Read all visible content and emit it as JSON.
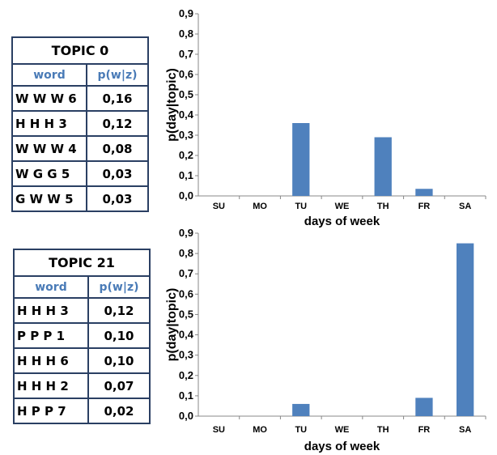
{
  "tables": [
    {
      "title": "TOPIC 0",
      "headers": [
        "word",
        "p(w|z)"
      ],
      "rows": [
        [
          "W W W 6",
          "0,16"
        ],
        [
          "H H H 3",
          "0,12"
        ],
        [
          "W W W 4",
          "0,08"
        ],
        [
          "W G G 5",
          "0,03"
        ],
        [
          "G W W 5",
          "0,03"
        ]
      ]
    },
    {
      "title": "TOPIC 21",
      "headers": [
        "word",
        "p(w|z)"
      ],
      "rows": [
        [
          "H H H 3",
          "0,12"
        ],
        [
          "P P P 1",
          "0,10"
        ],
        [
          "H H H 6",
          "0,10"
        ],
        [
          "H H H 2",
          "0,07"
        ],
        [
          "H P P 7",
          "0,02"
        ]
      ]
    }
  ],
  "chart_data": [
    {
      "type": "bar",
      "categories": [
        "SU",
        "MO",
        "TU",
        "WE",
        "TH",
        "FR",
        "SA"
      ],
      "values": [
        0,
        0,
        0.36,
        0,
        0.29,
        0.035,
        0
      ],
      "xlabel": "days of week",
      "ylabel": "p(day|topic)",
      "ylim": [
        0,
        0.9
      ],
      "yticks": [
        "0,0",
        "0,1",
        "0,2",
        "0,3",
        "0,4",
        "0,5",
        "0,6",
        "0,7",
        "0,8",
        "0,9"
      ],
      "grid": false,
      "bar_color": "#4f81bd"
    },
    {
      "type": "bar",
      "categories": [
        "SU",
        "MO",
        "TU",
        "WE",
        "TH",
        "FR",
        "SA"
      ],
      "values": [
        0,
        0,
        0.06,
        0,
        0,
        0.09,
        0.85
      ],
      "xlabel": "days of week",
      "ylabel": "p(day|topic)",
      "ylim": [
        0,
        0.9
      ],
      "yticks": [
        "0,0",
        "0,1",
        "0,2",
        "0,3",
        "0,4",
        "0,5",
        "0,6",
        "0,7",
        "0,8",
        "0,9"
      ],
      "grid": false,
      "bar_color": "#4f81bd"
    }
  ]
}
